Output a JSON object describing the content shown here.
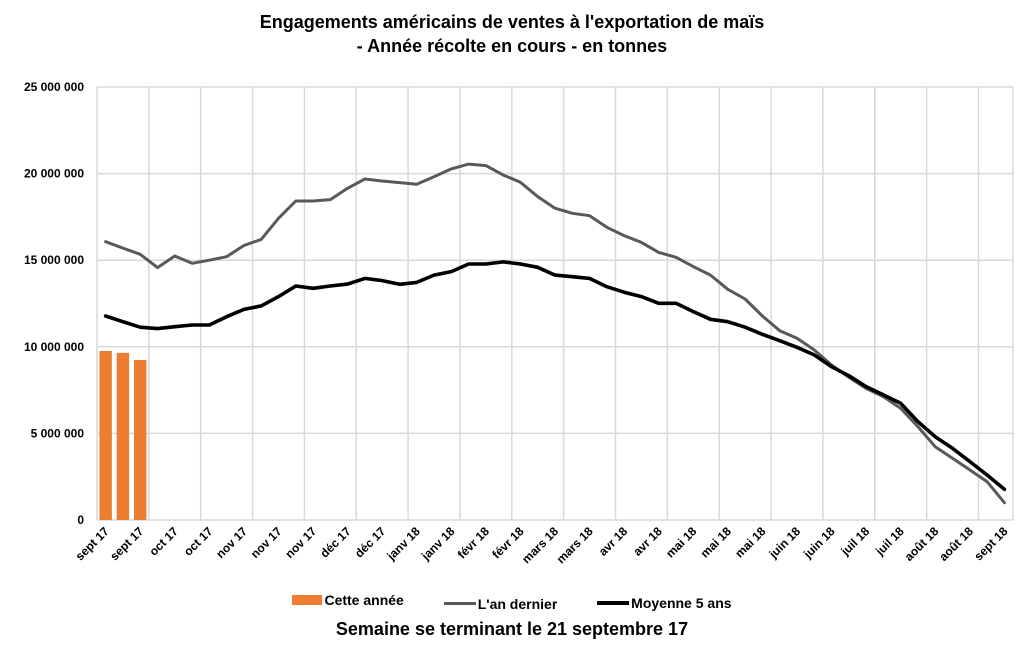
{
  "chart_data": {
    "type": "bar+line",
    "title_line1": "Engagements américains de ventes à l'exportation de maïs",
    "title_line2": "- Année récolte en cours - en tonnes",
    "xlabel": "Semaine se terminant le 21 septembre 17",
    "ylabel": "",
    "ylim": [
      0,
      25000000
    ],
    "yticks": [
      0,
      5000000,
      10000000,
      15000000,
      20000000,
      25000000
    ],
    "ytick_labels": [
      "0",
      "5 000 000",
      "10 000 000",
      "15 000 000",
      "20 000 000",
      "25 000 000"
    ],
    "grid": true,
    "legend_position": "bottom",
    "num_categories": 53,
    "x_tick_labels": [
      "sept 17",
      "sept 17",
      "oct 17",
      "oct 17",
      "nov 17",
      "nov 17",
      "nov 17",
      "déc 17",
      "déc 17",
      "janv 18",
      "janv 18",
      "févr 18",
      "févr 18",
      "mars 18",
      "mars 18",
      "avr 18",
      "avr 18",
      "mai 18",
      "mai 18",
      "mai 18",
      "juin 18",
      "juin 18",
      "juil 18",
      "juil 18",
      "août 18",
      "août 18",
      "sept 18"
    ],
    "series": [
      {
        "name": "Cette année",
        "kind": "bar",
        "color": "#ed7d31",
        "values": [
          9760000,
          9650000,
          9240000
        ]
      },
      {
        "name": "L'an dernier",
        "kind": "line",
        "color": "#595959",
        "values": [
          16070000,
          15700000,
          15340000,
          14570000,
          15240000,
          14820000,
          15000000,
          15200000,
          15850000,
          16200000,
          17420000,
          18420000,
          18420000,
          18500000,
          19150000,
          19690000,
          19570000,
          19480000,
          19380000,
          19820000,
          20270000,
          20550000,
          20460000,
          19920000,
          19500000,
          18670000,
          18000000,
          17710000,
          17570000,
          16900000,
          16420000,
          16030000,
          15450000,
          15170000,
          14630000,
          14140000,
          13320000,
          12760000,
          11780000,
          10930000,
          10490000,
          9820000,
          8950000,
          8240000,
          7600000,
          7120000,
          6450000,
          5390000,
          4230000,
          3560000,
          2890000,
          2210000,
          1000000
        ]
      },
      {
        "name": "Moyenne 5 ans",
        "kind": "line",
        "color": "#000000",
        "values": [
          11780000,
          11450000,
          11130000,
          11050000,
          11160000,
          11260000,
          11260000,
          11740000,
          12160000,
          12360000,
          12900000,
          13510000,
          13380000,
          13510000,
          13620000,
          13950000,
          13820000,
          13610000,
          13720000,
          14140000,
          14340000,
          14780000,
          14780000,
          14900000,
          14780000,
          14590000,
          14140000,
          14050000,
          13950000,
          13470000,
          13150000,
          12900000,
          12510000,
          12510000,
          12030000,
          11590000,
          11450000,
          11130000,
          10720000,
          10350000,
          9970000,
          9530000,
          8850000,
          8330000,
          7700000,
          7220000,
          6740000,
          5680000,
          4810000,
          4140000,
          3370000,
          2600000,
          1770000
        ]
      }
    ]
  }
}
